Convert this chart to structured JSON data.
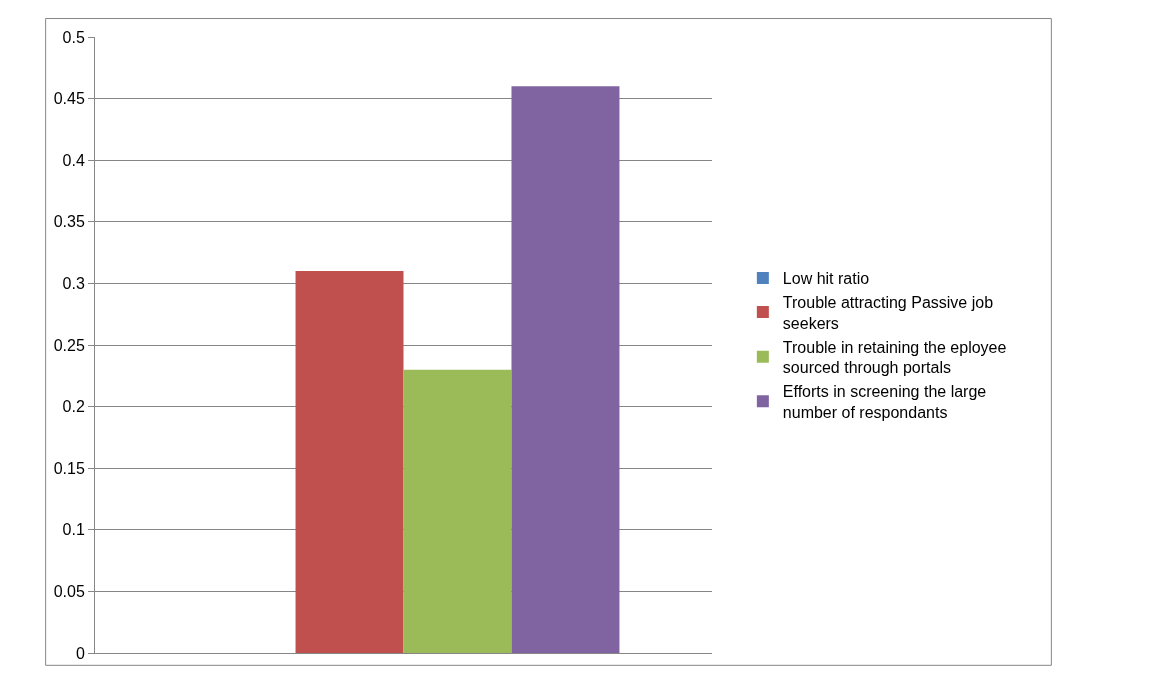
{
  "chart_data": {
    "type": "bar",
    "categories": [
      null
    ],
    "series": [
      {
        "name": "Low hit ratio",
        "color": "#4f81bd",
        "values": [
          0
        ]
      },
      {
        "name": "Trouble attracting Passive job seekers",
        "color": "#c0504d",
        "values": [
          0.31
        ]
      },
      {
        "name": "Trouble in retaining the eployee sourced through portals",
        "color": "#9bbb59",
        "values": [
          0.23
        ]
      },
      {
        "name": "Efforts in screening the large number of respondants",
        "color": "#8064a2",
        "values": [
          0.46
        ]
      }
    ],
    "ylim": [
      0,
      0.5
    ],
    "yticks": [
      {
        "value": 0,
        "label": "0"
      },
      0.05,
      0.1,
      0.15,
      0.2,
      0.25,
      0.3,
      0.35,
      0.4,
      0.45,
      0.5
    ],
    "grid": "y",
    "legend": "right"
  }
}
